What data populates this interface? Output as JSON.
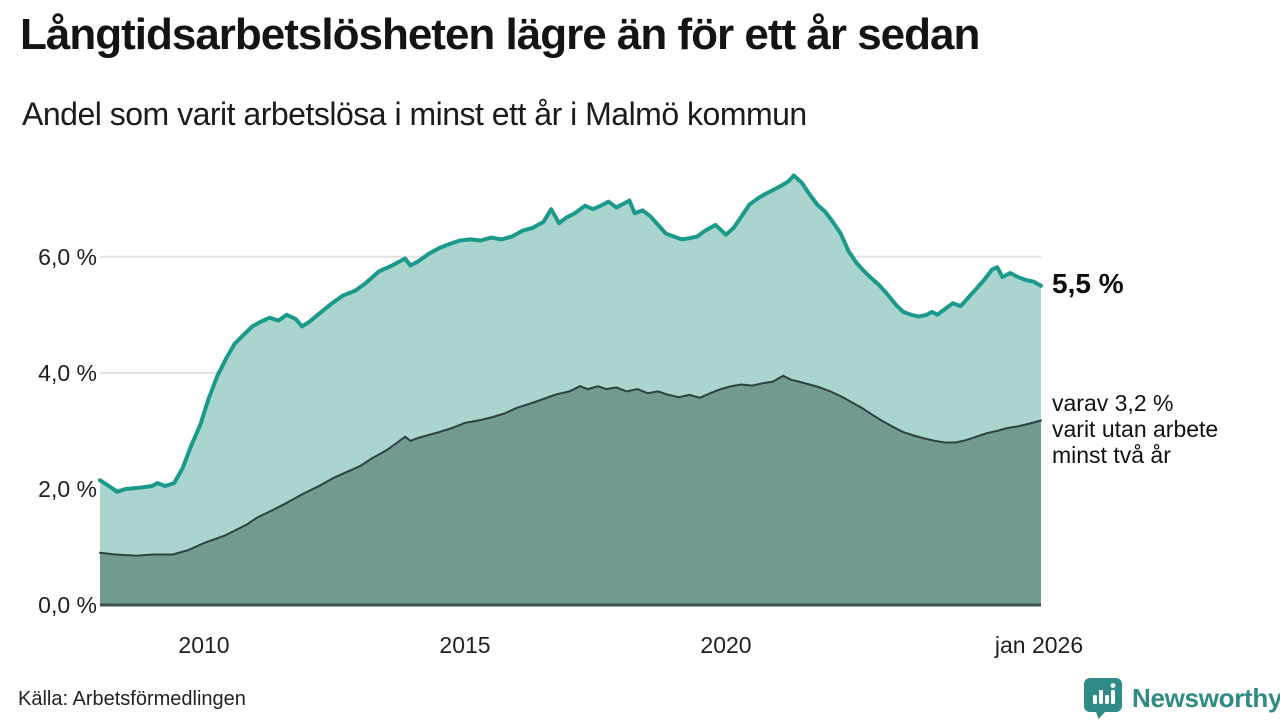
{
  "header": {
    "title": "Långtidsarbetslösheten lägre än för ett år sedan",
    "subtitle": "Andel som varit arbetslösa i minst ett år i Malmö kommun"
  },
  "footer": {
    "source": "Källa: Arbetsförmedlingen",
    "brand": "Newsworthy"
  },
  "chart_data": {
    "type": "area",
    "title": "Långtidsarbetslösheten lägre än för ett år sedan",
    "subtitle": "Andel som varit arbetslösa i minst ett år i Malmö kommun",
    "unit": "%",
    "xlim": [
      2008.0,
      2026.04
    ],
    "ylim": [
      0,
      7.53
    ],
    "grid_color": "#e2e2e6",
    "baseline_color": "#3d5450",
    "yticks": [
      {
        "value": 6,
        "label": "6,0 %"
      },
      {
        "value": 4,
        "label": "4,0 %"
      },
      {
        "value": 2,
        "label": "2,0 %"
      },
      {
        "value": 0,
        "label": "0,0 %"
      }
    ],
    "xticks": [
      {
        "value": 2010,
        "label": "2010"
      },
      {
        "value": 2015,
        "label": "2015"
      },
      {
        "value": 2020,
        "label": "2020"
      },
      {
        "value": 2026.0,
        "label": "jan 2026"
      }
    ],
    "series": [
      {
        "id": "unemployed-at-least-one-year",
        "end_label": "5,5 %",
        "end_value": 5.5,
        "line_color": "#1b9a8b",
        "fill_color": "#aad5ce",
        "line_width": 4,
        "points": [
          [
            2008.0,
            2.15
          ],
          [
            2008.17,
            2.05
          ],
          [
            2008.33,
            1.95
          ],
          [
            2008.5,
            2.0
          ],
          [
            2008.75,
            2.02
          ],
          [
            2009.0,
            2.05
          ],
          [
            2009.1,
            2.1
          ],
          [
            2009.25,
            2.05
          ],
          [
            2009.42,
            2.1
          ],
          [
            2009.58,
            2.35
          ],
          [
            2009.75,
            2.75
          ],
          [
            2009.92,
            3.1
          ],
          [
            2010.08,
            3.55
          ],
          [
            2010.25,
            3.95
          ],
          [
            2010.42,
            4.25
          ],
          [
            2010.58,
            4.5
          ],
          [
            2010.75,
            4.65
          ],
          [
            2010.92,
            4.8
          ],
          [
            2011.08,
            4.88
          ],
          [
            2011.25,
            4.95
          ],
          [
            2011.42,
            4.9
          ],
          [
            2011.58,
            5.0
          ],
          [
            2011.75,
            4.93
          ],
          [
            2011.87,
            4.8
          ],
          [
            2012.0,
            4.87
          ],
          [
            2012.2,
            5.02
          ],
          [
            2012.45,
            5.2
          ],
          [
            2012.65,
            5.33
          ],
          [
            2012.9,
            5.42
          ],
          [
            2013.1,
            5.55
          ],
          [
            2013.35,
            5.75
          ],
          [
            2013.6,
            5.85
          ],
          [
            2013.85,
            5.97
          ],
          [
            2013.95,
            5.85
          ],
          [
            2014.1,
            5.92
          ],
          [
            2014.3,
            6.05
          ],
          [
            2014.5,
            6.15
          ],
          [
            2014.7,
            6.22
          ],
          [
            2014.9,
            6.28
          ],
          [
            2015.1,
            6.3
          ],
          [
            2015.3,
            6.28
          ],
          [
            2015.5,
            6.33
          ],
          [
            2015.7,
            6.3
          ],
          [
            2015.9,
            6.35
          ],
          [
            2016.1,
            6.45
          ],
          [
            2016.3,
            6.5
          ],
          [
            2016.5,
            6.6
          ],
          [
            2016.65,
            6.82
          ],
          [
            2016.8,
            6.58
          ],
          [
            2016.95,
            6.68
          ],
          [
            2017.1,
            6.75
          ],
          [
            2017.3,
            6.88
          ],
          [
            2017.45,
            6.82
          ],
          [
            2017.6,
            6.88
          ],
          [
            2017.75,
            6.95
          ],
          [
            2017.9,
            6.85
          ],
          [
            2018.05,
            6.92
          ],
          [
            2018.15,
            6.97
          ],
          [
            2018.25,
            6.75
          ],
          [
            2018.4,
            6.8
          ],
          [
            2018.55,
            6.7
          ],
          [
            2018.7,
            6.55
          ],
          [
            2018.85,
            6.4
          ],
          [
            2019.0,
            6.35
          ],
          [
            2019.15,
            6.3
          ],
          [
            2019.3,
            6.32
          ],
          [
            2019.45,
            6.35
          ],
          [
            2019.6,
            6.45
          ],
          [
            2019.8,
            6.55
          ],
          [
            2020.0,
            6.38
          ],
          [
            2020.15,
            6.5
          ],
          [
            2020.3,
            6.7
          ],
          [
            2020.45,
            6.9
          ],
          [
            2020.6,
            7.0
          ],
          [
            2020.75,
            7.08
          ],
          [
            2020.9,
            7.15
          ],
          [
            2021.05,
            7.22
          ],
          [
            2021.2,
            7.3
          ],
          [
            2021.3,
            7.4
          ],
          [
            2021.45,
            7.28
          ],
          [
            2021.6,
            7.08
          ],
          [
            2021.75,
            6.9
          ],
          [
            2021.9,
            6.78
          ],
          [
            2022.05,
            6.6
          ],
          [
            2022.2,
            6.4
          ],
          [
            2022.35,
            6.1
          ],
          [
            2022.5,
            5.9
          ],
          [
            2022.65,
            5.75
          ],
          [
            2022.8,
            5.62
          ],
          [
            2022.95,
            5.5
          ],
          [
            2023.1,
            5.35
          ],
          [
            2023.25,
            5.18
          ],
          [
            2023.4,
            5.05
          ],
          [
            2023.55,
            5.0
          ],
          [
            2023.7,
            4.97
          ],
          [
            2023.85,
            5.0
          ],
          [
            2023.95,
            5.05
          ],
          [
            2024.05,
            5.0
          ],
          [
            2024.2,
            5.1
          ],
          [
            2024.35,
            5.2
          ],
          [
            2024.5,
            5.15
          ],
          [
            2024.65,
            5.3
          ],
          [
            2024.8,
            5.45
          ],
          [
            2024.95,
            5.6
          ],
          [
            2025.1,
            5.78
          ],
          [
            2025.2,
            5.82
          ],
          [
            2025.3,
            5.65
          ],
          [
            2025.45,
            5.72
          ],
          [
            2025.6,
            5.65
          ],
          [
            2025.75,
            5.6
          ],
          [
            2025.9,
            5.57
          ],
          [
            2026.04,
            5.5
          ]
        ]
      },
      {
        "id": "unemployed-at-least-two-years",
        "annotation": [
          "varav 3,2 %",
          "varit utan arbete",
          "minst två år"
        ],
        "end_value": 3.2,
        "line_color": "#2d423e",
        "fill_color": "#719a93",
        "line_width": 2,
        "points": [
          [
            2008.0,
            0.9
          ],
          [
            2008.3,
            0.87
          ],
          [
            2008.7,
            0.85
          ],
          [
            2009.0,
            0.87
          ],
          [
            2009.4,
            0.87
          ],
          [
            2009.7,
            0.95
          ],
          [
            2010.0,
            1.07
          ],
          [
            2010.4,
            1.2
          ],
          [
            2010.8,
            1.38
          ],
          [
            2011.0,
            1.5
          ],
          [
            2011.3,
            1.63
          ],
          [
            2011.6,
            1.77
          ],
          [
            2011.9,
            1.92
          ],
          [
            2012.2,
            2.05
          ],
          [
            2012.5,
            2.2
          ],
          [
            2012.8,
            2.32
          ],
          [
            2013.0,
            2.4
          ],
          [
            2013.2,
            2.52
          ],
          [
            2013.5,
            2.67
          ],
          [
            2013.7,
            2.8
          ],
          [
            2013.85,
            2.9
          ],
          [
            2013.95,
            2.83
          ],
          [
            2014.1,
            2.88
          ],
          [
            2014.3,
            2.93
          ],
          [
            2014.5,
            2.98
          ],
          [
            2014.75,
            3.05
          ],
          [
            2015.0,
            3.14
          ],
          [
            2015.25,
            3.18
          ],
          [
            2015.5,
            3.23
          ],
          [
            2015.75,
            3.3
          ],
          [
            2016.0,
            3.4
          ],
          [
            2016.25,
            3.47
          ],
          [
            2016.5,
            3.55
          ],
          [
            2016.75,
            3.63
          ],
          [
            2017.0,
            3.68
          ],
          [
            2017.2,
            3.77
          ],
          [
            2017.35,
            3.72
          ],
          [
            2017.55,
            3.77
          ],
          [
            2017.7,
            3.72
          ],
          [
            2017.9,
            3.75
          ],
          [
            2018.1,
            3.68
          ],
          [
            2018.3,
            3.72
          ],
          [
            2018.5,
            3.65
          ],
          [
            2018.7,
            3.68
          ],
          [
            2018.9,
            3.62
          ],
          [
            2019.1,
            3.58
          ],
          [
            2019.3,
            3.62
          ],
          [
            2019.5,
            3.57
          ],
          [
            2019.7,
            3.65
          ],
          [
            2019.9,
            3.72
          ],
          [
            2020.1,
            3.77
          ],
          [
            2020.3,
            3.8
          ],
          [
            2020.5,
            3.78
          ],
          [
            2020.7,
            3.82
          ],
          [
            2020.9,
            3.85
          ],
          [
            2021.1,
            3.95
          ],
          [
            2021.25,
            3.88
          ],
          [
            2021.4,
            3.85
          ],
          [
            2021.6,
            3.8
          ],
          [
            2021.8,
            3.75
          ],
          [
            2022.0,
            3.68
          ],
          [
            2022.2,
            3.6
          ],
          [
            2022.4,
            3.5
          ],
          [
            2022.6,
            3.4
          ],
          [
            2022.8,
            3.28
          ],
          [
            2023.0,
            3.17
          ],
          [
            2023.2,
            3.07
          ],
          [
            2023.4,
            2.98
          ],
          [
            2023.6,
            2.92
          ],
          [
            2023.8,
            2.87
          ],
          [
            2024.0,
            2.83
          ],
          [
            2024.2,
            2.8
          ],
          [
            2024.4,
            2.8
          ],
          [
            2024.6,
            2.84
          ],
          [
            2024.8,
            2.9
          ],
          [
            2025.0,
            2.96
          ],
          [
            2025.2,
            3.0
          ],
          [
            2025.4,
            3.05
          ],
          [
            2025.6,
            3.08
          ],
          [
            2025.8,
            3.12
          ],
          [
            2026.04,
            3.18
          ]
        ]
      }
    ]
  }
}
